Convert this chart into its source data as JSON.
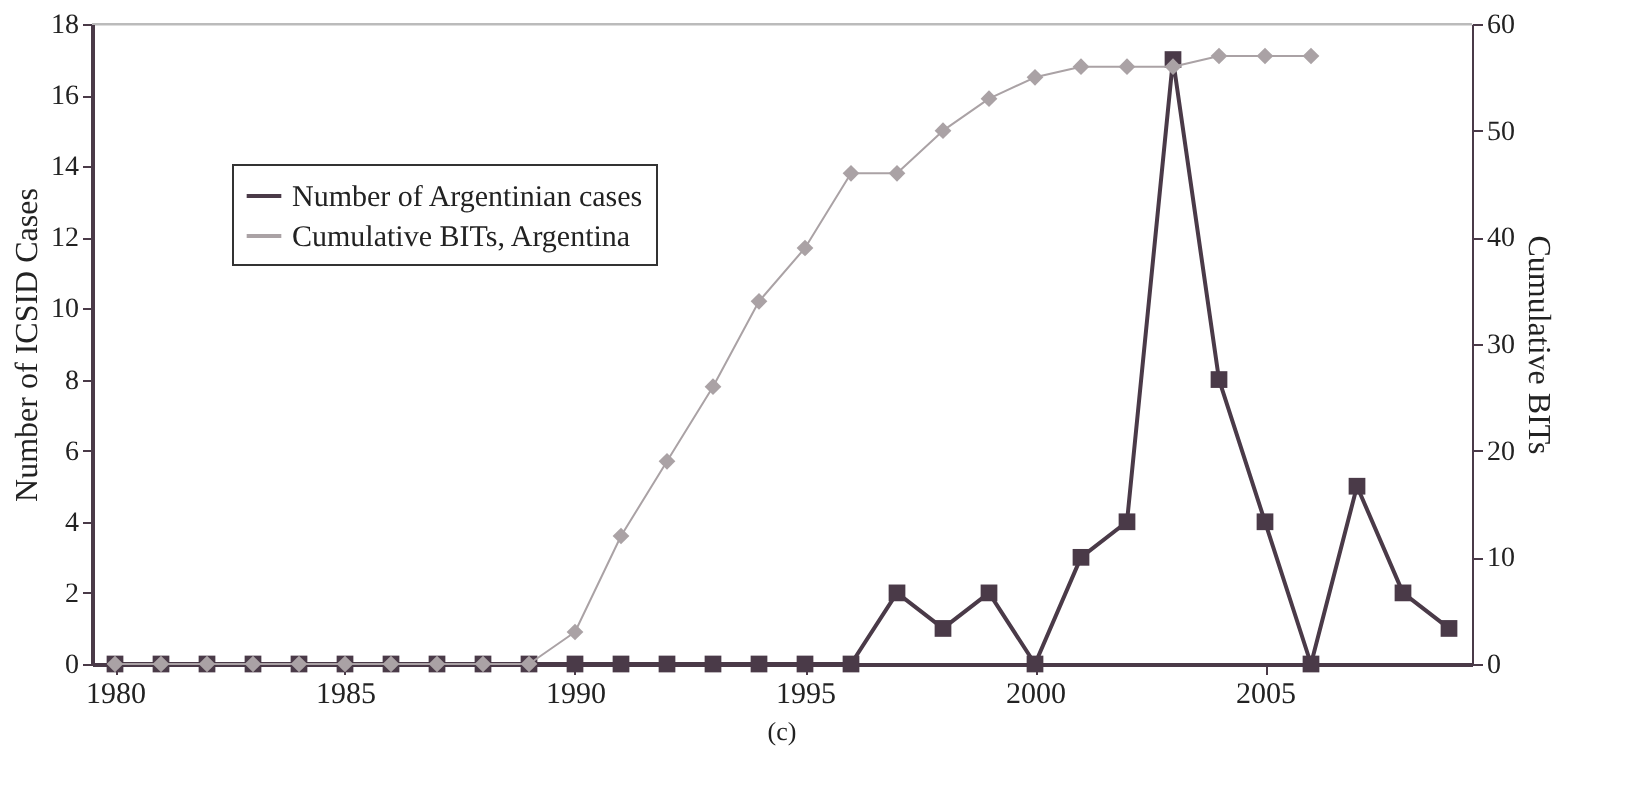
{
  "chart_data": {
    "type": "line",
    "ylabel": "Number of ICSID Cases",
    "y2label": "Cumulative BITs",
    "annotations": [
      "(c)"
    ],
    "x": [
      1980,
      1981,
      1982,
      1983,
      1984,
      1985,
      1986,
      1987,
      1988,
      1989,
      1990,
      1991,
      1992,
      1993,
      1994,
      1995,
      1996,
      1997,
      1998,
      1999,
      2000,
      2001,
      2002,
      2003,
      2004,
      2005,
      2006,
      2007,
      2008,
      2009
    ],
    "xlim": [
      1979.5,
      2009.5
    ],
    "xticks": [
      1980,
      1985,
      1990,
      1995,
      2000,
      2005
    ],
    "ylim": [
      0,
      18
    ],
    "yticks": [
      0,
      2,
      4,
      6,
      8,
      10,
      12,
      14,
      16,
      18
    ],
    "y2lim": [
      0,
      60
    ],
    "y2ticks": [
      0,
      10,
      20,
      30,
      40,
      50,
      60
    ],
    "grid": false,
    "legend": "top left",
    "series": [
      {
        "name": "Number of Argentinian cases",
        "color": "#4a3a48",
        "marker": "square",
        "values": [
          0,
          0,
          0,
          0,
          0,
          0,
          0,
          0,
          0,
          0,
          0,
          0,
          0,
          0,
          0,
          0,
          0,
          2,
          1,
          2,
          0,
          3,
          4,
          17,
          8,
          4,
          0,
          5,
          2,
          1
        ]
      },
      {
        "name": "Cumulative BITs, Argentina",
        "color": "#aaa2a5",
        "marker": "diamond",
        "axis": "y2",
        "values": [
          0,
          0,
          0,
          0,
          0,
          0,
          0,
          0,
          0,
          0,
          3,
          12,
          19,
          26,
          34,
          39,
          46,
          46,
          50,
          53,
          55,
          56,
          56,
          56,
          57,
          57,
          57,
          null,
          null,
          null
        ]
      }
    ]
  }
}
